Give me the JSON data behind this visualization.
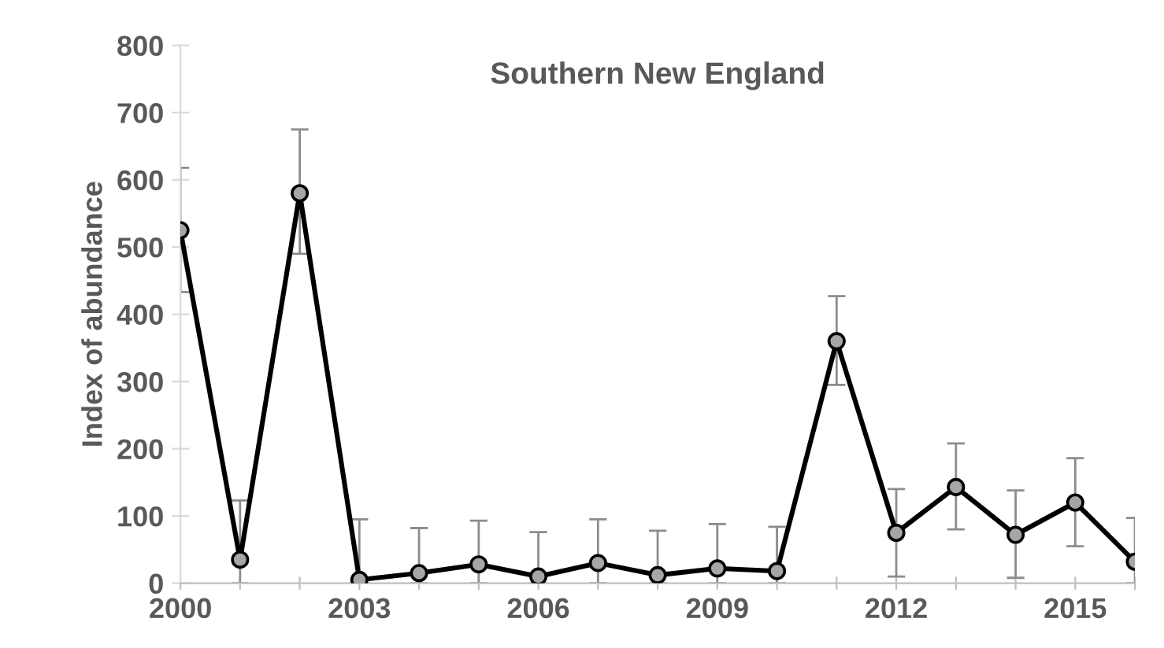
{
  "chart_data": {
    "type": "line",
    "title": "Southern New England",
    "ylabel": "Index of abundance",
    "x": [
      2000,
      2001,
      2002,
      2003,
      2004,
      2005,
      2006,
      2007,
      2008,
      2009,
      2010,
      2011,
      2012,
      2013,
      2014,
      2015,
      2016
    ],
    "series": [
      {
        "color": "#000000",
        "values": [
          525,
          35,
          580,
          5,
          15,
          28,
          10,
          30,
          12,
          22,
          18,
          360,
          75,
          143,
          72,
          120,
          32
        ],
        "errors": [
          [
            433,
            618
          ],
          [
            0,
            123
          ],
          [
            490,
            675
          ],
          [
            0,
            95
          ],
          [
            0,
            82
          ],
          [
            0,
            93
          ],
          [
            0,
            76
          ],
          [
            0,
            95
          ],
          [
            0,
            78
          ],
          [
            0,
            88
          ],
          [
            0,
            84
          ],
          [
            295,
            427
          ],
          [
            10,
            140
          ],
          [
            80,
            208
          ],
          [
            8,
            138
          ],
          [
            55,
            186
          ],
          [
            0,
            97
          ]
        ]
      }
    ],
    "xlim": [
      2000,
      2016
    ],
    "xticks": [
      2000,
      {
        "value": 2001,
        "label": null
      },
      {
        "value": 2002,
        "label": null
      },
      2003,
      {
        "value": 2004,
        "label": null
      },
      {
        "value": 2005,
        "label": null
      },
      2006,
      {
        "value": 2007,
        "label": null
      },
      {
        "value": 2008,
        "label": null
      },
      2009,
      {
        "value": 2010,
        "label": null
      },
      {
        "value": 2011,
        "label": null
      },
      2012,
      {
        "value": 2013,
        "label": null
      },
      {
        "value": 2014,
        "label": null
      },
      2015,
      {
        "value": 2016,
        "label": null
      }
    ],
    "ylim": [
      0,
      800
    ],
    "yticks": [
      0,
      100,
      200,
      300,
      400,
      500,
      600,
      700,
      800
    ],
    "marker": "circle",
    "line_style": "solid",
    "grid": false,
    "legend": false
  }
}
